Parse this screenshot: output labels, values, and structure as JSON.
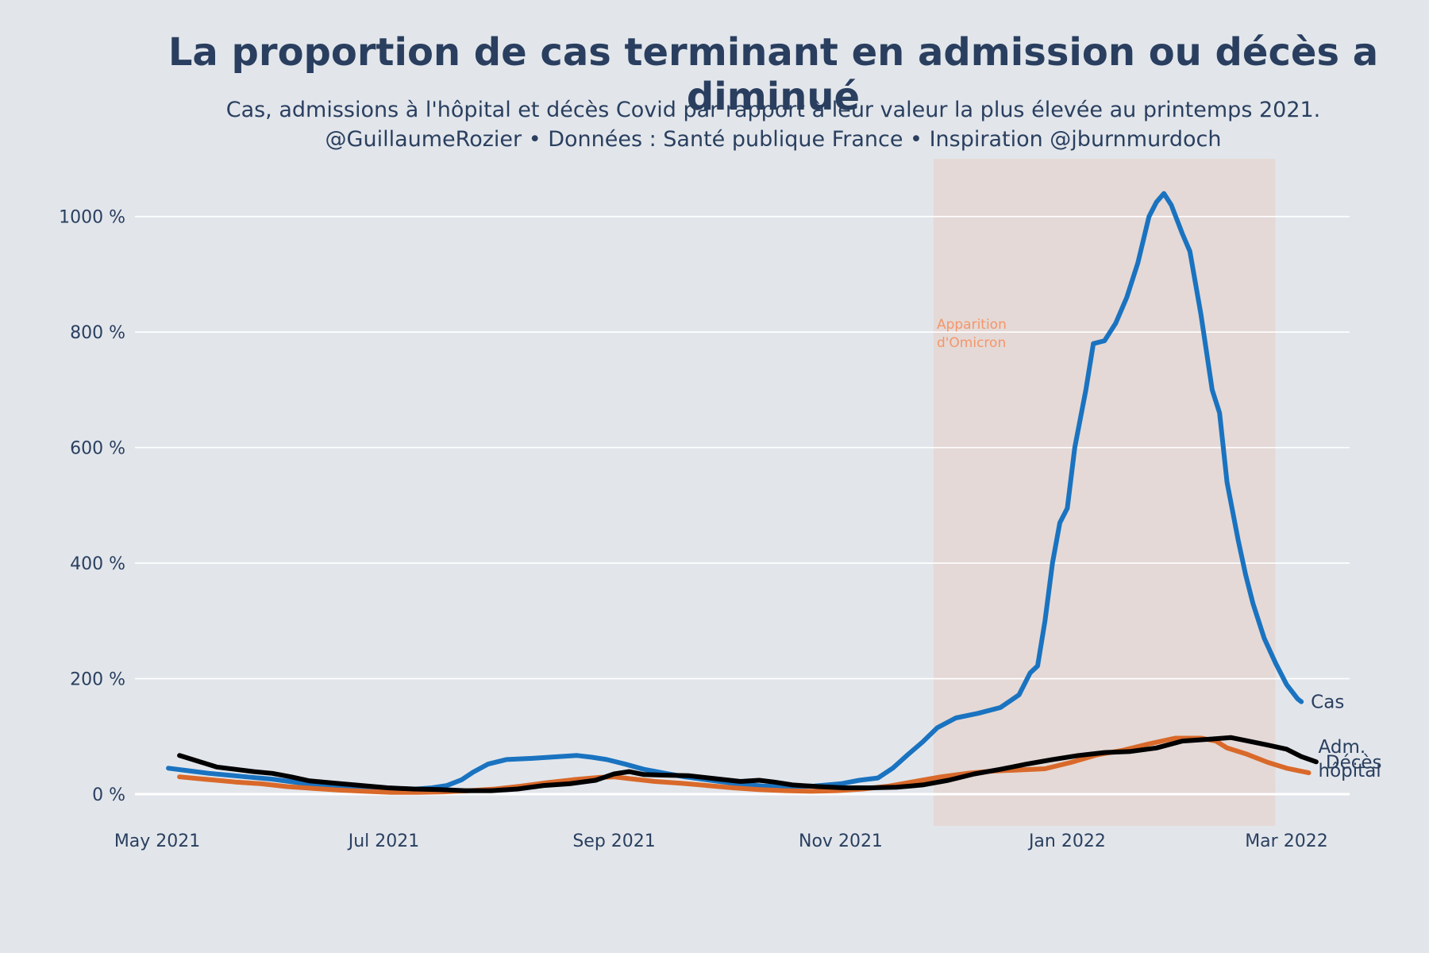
{
  "chart_data": {
    "type": "line",
    "title": "La proportion de cas terminant en admission ou décès a diminué",
    "subtitle_lines": [
      "Cas, admissions à l'hôpital et décès Covid par rapport à leur valeur la plus élevée au printemps 2021.",
      "@GuillaumeRozier • Données : Santé publique France • Inspiration @jburnmurdoch"
    ],
    "x_ticks": [
      "2021-05-01",
      "2021-07-01",
      "2021-09-01",
      "2021-11-01",
      "2022-01-01",
      "2022-03-01"
    ],
    "x_tick_labels": [
      "May 2021",
      "Jul 2021",
      "Sep 2021",
      "Nov 2021",
      "Jan 2022",
      "Mar 2022"
    ],
    "y_ticks": [
      0,
      200,
      400,
      600,
      800,
      1000
    ],
    "y_tick_labels": [
      "0 %",
      "200 %",
      "400 %",
      "600 %",
      "800 %",
      "1000 %"
    ],
    "xlim": [
      "2021-04-25",
      "2022-03-18"
    ],
    "ylim": [
      -55,
      1100
    ],
    "grid": "horizontal",
    "shaded_region": {
      "start": "2021-11-26",
      "end": "2022-02-26",
      "color": "#f4966a",
      "opacity": 0.16
    },
    "annotation": {
      "lines": [
        "Apparition",
        "d'Omicron"
      ],
      "date": "2021-11-26",
      "y": 800,
      "color": "#f4966a"
    },
    "series": [
      {
        "name": "Cas",
        "label_lines": [
          "Cas"
        ],
        "color": "#1a73c0",
        "points": [
          [
            "2021-05-04",
            45
          ],
          [
            "2021-05-10",
            40
          ],
          [
            "2021-05-15",
            36
          ],
          [
            "2021-05-20",
            33
          ],
          [
            "2021-05-25",
            30
          ],
          [
            "2021-06-01",
            26
          ],
          [
            "2021-06-08",
            20
          ],
          [
            "2021-06-15",
            15
          ],
          [
            "2021-06-22",
            12
          ],
          [
            "2021-06-29",
            10
          ],
          [
            "2021-07-06",
            9
          ],
          [
            "2021-07-10",
            9
          ],
          [
            "2021-07-14",
            11
          ],
          [
            "2021-07-18",
            15
          ],
          [
            "2021-07-22",
            25
          ],
          [
            "2021-07-25",
            38
          ],
          [
            "2021-07-29",
            52
          ],
          [
            "2021-08-03",
            60
          ],
          [
            "2021-08-10",
            62
          ],
          [
            "2021-08-17",
            65
          ],
          [
            "2021-08-22",
            67
          ],
          [
            "2021-08-26",
            64
          ],
          [
            "2021-08-30",
            60
          ],
          [
            "2021-09-04",
            52
          ],
          [
            "2021-09-09",
            43
          ],
          [
            "2021-09-14",
            37
          ],
          [
            "2021-09-20",
            30
          ],
          [
            "2021-09-27",
            24
          ],
          [
            "2021-10-04",
            18
          ],
          [
            "2021-10-11",
            14
          ],
          [
            "2021-10-18",
            13
          ],
          [
            "2021-10-25",
            14
          ],
          [
            "2021-11-01",
            18
          ],
          [
            "2021-11-06",
            24
          ],
          [
            "2021-11-11",
            28
          ],
          [
            "2021-11-15",
            45
          ],
          [
            "2021-11-19",
            68
          ],
          [
            "2021-11-23",
            90
          ],
          [
            "2021-11-27",
            115
          ],
          [
            "2021-12-02",
            132
          ],
          [
            "2021-12-08",
            140
          ],
          [
            "2021-12-14",
            150
          ],
          [
            "2021-12-19",
            172
          ],
          [
            "2021-12-22",
            210
          ],
          [
            "2021-12-24",
            222
          ],
          [
            "2021-12-26",
            300
          ],
          [
            "2021-12-28",
            400
          ],
          [
            "2021-12-30",
            470
          ],
          [
            "2022-01-01",
            495
          ],
          [
            "2022-01-03",
            600
          ],
          [
            "2022-01-06",
            700
          ],
          [
            "2022-01-08",
            780
          ],
          [
            "2022-01-11",
            785
          ],
          [
            "2022-01-14",
            815
          ],
          [
            "2022-01-17",
            860
          ],
          [
            "2022-01-20",
            920
          ],
          [
            "2022-01-23",
            1000
          ],
          [
            "2022-01-25",
            1025
          ],
          [
            "2022-01-27",
            1040
          ],
          [
            "2022-01-29",
            1020
          ],
          [
            "2022-02-01",
            970
          ],
          [
            "2022-02-03",
            940
          ],
          [
            "2022-02-06",
            830
          ],
          [
            "2022-02-09",
            700
          ],
          [
            "2022-02-11",
            660
          ],
          [
            "2022-02-13",
            540
          ],
          [
            "2022-02-16",
            440
          ],
          [
            "2022-02-18",
            380
          ],
          [
            "2022-02-20",
            330
          ],
          [
            "2022-02-23",
            270
          ],
          [
            "2022-02-26",
            228
          ],
          [
            "2022-03-01",
            190
          ],
          [
            "2022-03-04",
            165
          ],
          [
            "2022-03-05",
            160
          ]
        ]
      },
      {
        "name": "Adm. hôpital",
        "label_lines": [
          "Adm.",
          "hôpital"
        ],
        "color": "#d9692a",
        "points": [
          [
            "2021-05-07",
            30
          ],
          [
            "2021-05-12",
            27
          ],
          [
            "2021-05-17",
            24
          ],
          [
            "2021-05-22",
            21
          ],
          [
            "2021-05-29",
            18
          ],
          [
            "2021-06-05",
            13
          ],
          [
            "2021-06-12",
            10
          ],
          [
            "2021-06-19",
            7
          ],
          [
            "2021-06-26",
            5
          ],
          [
            "2021-07-03",
            3
          ],
          [
            "2021-07-10",
            3
          ],
          [
            "2021-07-17",
            4
          ],
          [
            "2021-07-24",
            6
          ],
          [
            "2021-07-31",
            9
          ],
          [
            "2021-08-07",
            14
          ],
          [
            "2021-08-14",
            20
          ],
          [
            "2021-08-21",
            25
          ],
          [
            "2021-08-28",
            29
          ],
          [
            "2021-09-01",
            30
          ],
          [
            "2021-09-05",
            27
          ],
          [
            "2021-09-12",
            22
          ],
          [
            "2021-09-19",
            19
          ],
          [
            "2021-09-26",
            15
          ],
          [
            "2021-10-03",
            11
          ],
          [
            "2021-10-10",
            8
          ],
          [
            "2021-10-17",
            6
          ],
          [
            "2021-10-24",
            5
          ],
          [
            "2021-10-31",
            6
          ],
          [
            "2021-11-07",
            9
          ],
          [
            "2021-11-14",
            14
          ],
          [
            "2021-11-21",
            22
          ],
          [
            "2021-11-28",
            30
          ],
          [
            "2021-12-05",
            36
          ],
          [
            "2021-12-12",
            40
          ],
          [
            "2021-12-19",
            42
          ],
          [
            "2021-12-26",
            44
          ],
          [
            "2022-01-02",
            55
          ],
          [
            "2022-01-09",
            68
          ],
          [
            "2022-01-16",
            76
          ],
          [
            "2022-01-23",
            87
          ],
          [
            "2022-01-30",
            97
          ],
          [
            "2022-02-06",
            97
          ],
          [
            "2022-02-10",
            92
          ],
          [
            "2022-02-13",
            80
          ],
          [
            "2022-02-18",
            70
          ],
          [
            "2022-02-24",
            55
          ],
          [
            "2022-03-01",
            45
          ],
          [
            "2022-03-07",
            37
          ]
        ]
      },
      {
        "name": "Décès",
        "label_lines": [
          "Décès"
        ],
        "color": "#000000",
        "points": [
          [
            "2021-05-07",
            67
          ],
          [
            "2021-05-12",
            57
          ],
          [
            "2021-05-17",
            47
          ],
          [
            "2021-05-22",
            43
          ],
          [
            "2021-05-27",
            39
          ],
          [
            "2021-06-01",
            36
          ],
          [
            "2021-06-06",
            30
          ],
          [
            "2021-06-11",
            23
          ],
          [
            "2021-06-18",
            19
          ],
          [
            "2021-06-25",
            15
          ],
          [
            "2021-07-02",
            11
          ],
          [
            "2021-07-09",
            9
          ],
          [
            "2021-07-16",
            8
          ],
          [
            "2021-07-23",
            6
          ],
          [
            "2021-07-30",
            6
          ],
          [
            "2021-08-06",
            9
          ],
          [
            "2021-08-13",
            15
          ],
          [
            "2021-08-20",
            18
          ],
          [
            "2021-08-27",
            24
          ],
          [
            "2021-09-01",
            35
          ],
          [
            "2021-09-05",
            39
          ],
          [
            "2021-09-09",
            34
          ],
          [
            "2021-09-14",
            33
          ],
          [
            "2021-09-21",
            32
          ],
          [
            "2021-09-28",
            27
          ],
          [
            "2021-10-05",
            22
          ],
          [
            "2021-10-10",
            24
          ],
          [
            "2021-10-14",
            21
          ],
          [
            "2021-10-19",
            16
          ],
          [
            "2021-10-26",
            13
          ],
          [
            "2021-11-02",
            11
          ],
          [
            "2021-11-09",
            11
          ],
          [
            "2021-11-16",
            12
          ],
          [
            "2021-11-23",
            16
          ],
          [
            "2021-11-30",
            24
          ],
          [
            "2021-12-07",
            35
          ],
          [
            "2021-12-14",
            43
          ],
          [
            "2021-12-21",
            52
          ],
          [
            "2021-12-28",
            60
          ],
          [
            "2022-01-04",
            67
          ],
          [
            "2022-01-11",
            72
          ],
          [
            "2022-01-18",
            74
          ],
          [
            "2022-01-25",
            80
          ],
          [
            "2022-02-01",
            92
          ],
          [
            "2022-02-08",
            95
          ],
          [
            "2022-02-14",
            98
          ],
          [
            "2022-02-18",
            93
          ],
          [
            "2022-02-24",
            85
          ],
          [
            "2022-03-01",
            78
          ],
          [
            "2022-03-05",
            65
          ],
          [
            "2022-03-09",
            56
          ]
        ]
      }
    ]
  }
}
